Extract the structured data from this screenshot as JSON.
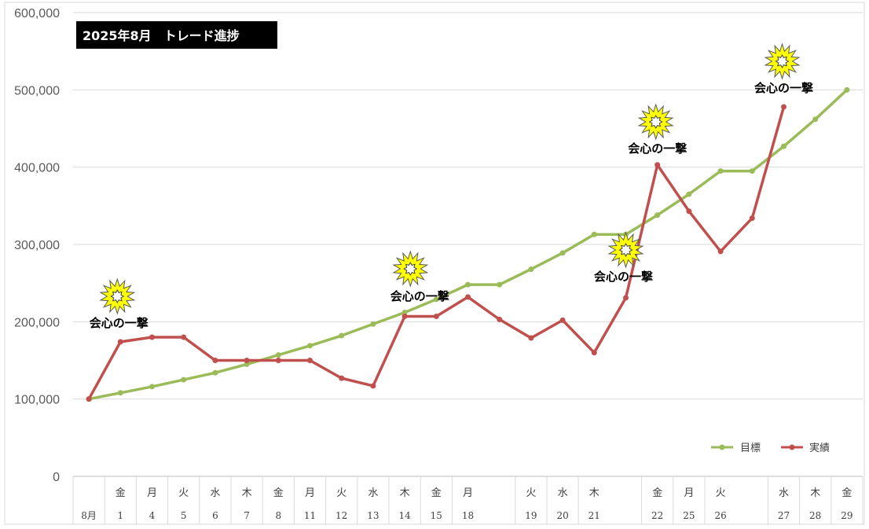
{
  "chart_data": {
    "type": "line",
    "title": "2025年8月　トレード進捗",
    "ylim": [
      0,
      600000
    ],
    "yticks": [
      "600,000",
      "500,000",
      "400,000",
      "300,000",
      "200,000",
      "100,000",
      "0"
    ],
    "ytick_values": [
      600000,
      500000,
      400000,
      300000,
      200000,
      100000,
      0
    ],
    "grid": true,
    "legend_position": "bottom-right",
    "x_axis": [
      {
        "weekday": "",
        "day": "8月"
      },
      {
        "weekday": "金",
        "day": "1"
      },
      {
        "weekday": "月",
        "day": "4"
      },
      {
        "weekday": "火",
        "day": "5"
      },
      {
        "weekday": "水",
        "day": "6"
      },
      {
        "weekday": "木",
        "day": "7"
      },
      {
        "weekday": "金",
        "day": "8"
      },
      {
        "weekday": "月",
        "day": "11"
      },
      {
        "weekday": "火",
        "day": "12"
      },
      {
        "weekday": "水",
        "day": "13"
      },
      {
        "weekday": "木",
        "day": "14"
      },
      {
        "weekday": "金",
        "day": "15"
      },
      {
        "weekday": "月",
        "day": "18"
      },
      {
        "weekday": "",
        "day": ""
      },
      {
        "weekday": "火",
        "day": "19"
      },
      {
        "weekday": "水",
        "day": "20"
      },
      {
        "weekday": "木",
        "day": "21"
      },
      {
        "weekday": "",
        "day": ""
      },
      {
        "weekday": "金",
        "day": "22"
      },
      {
        "weekday": "月",
        "day": "25"
      },
      {
        "weekday": "火",
        "day": "26"
      },
      {
        "weekday": "",
        "day": ""
      },
      {
        "weekday": "水",
        "day": "27"
      },
      {
        "weekday": "木",
        "day": "28"
      },
      {
        "weekday": "金",
        "day": "29"
      }
    ],
    "series": [
      {
        "name": "目標",
        "color": "#9bbb59",
        "values": [
          100000,
          108000,
          116000,
          125000,
          134000,
          145000,
          157000,
          169000,
          182000,
          197000,
          212000,
          229000,
          248000,
          248000,
          268000,
          289000,
          313000,
          313000,
          338000,
          365000,
          395000,
          395000,
          427000,
          462000,
          500000
        ]
      },
      {
        "name": "実績",
        "color": "#c0504d",
        "values": [
          100000,
          174000,
          180000,
          180000,
          150000,
          150000,
          150000,
          150000,
          127000,
          117000,
          207000,
          207000,
          232000,
          203000,
          179000,
          202000,
          160000,
          231000,
          403000,
          343000,
          291000,
          334000,
          478000,
          null,
          null
        ]
      }
    ],
    "annotations": [
      {
        "text": "会心の一撃",
        "index": 1
      },
      {
        "text": "会心の一撃",
        "index": 11
      },
      {
        "text": "会心の一撃",
        "index": 17
      },
      {
        "text": "会心の一撃",
        "index": 18
      },
      {
        "text": "会心の一撃",
        "index": 22
      }
    ]
  }
}
